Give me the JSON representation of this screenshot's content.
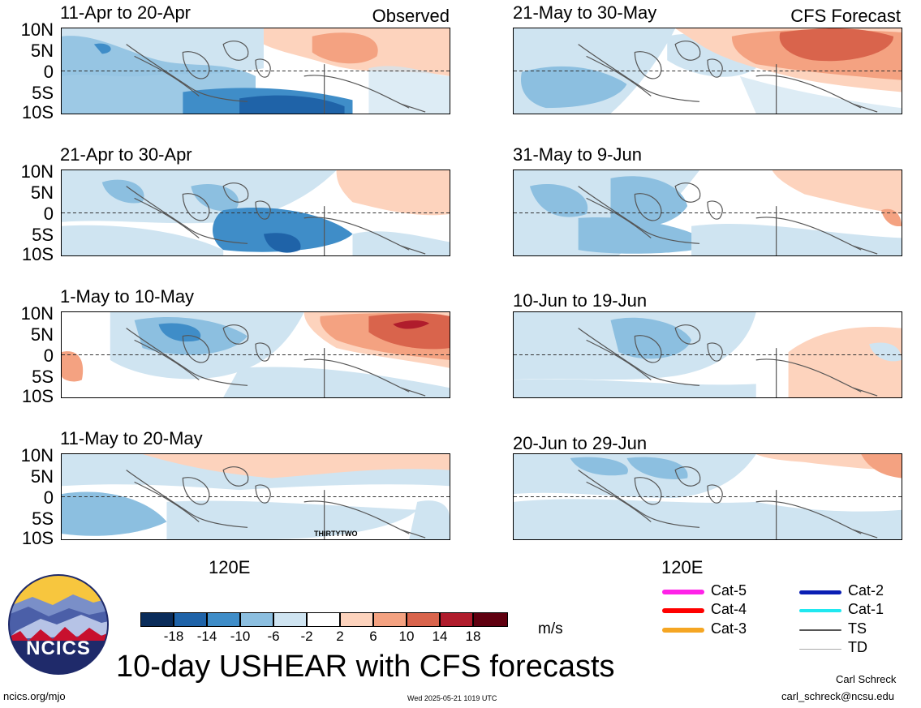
{
  "observed_label": "Observed",
  "forecast_label": "CFS Forecast",
  "panels_left": [
    {
      "period": "11-Apr to 20-Apr"
    },
    {
      "period": "21-Apr to 30-Apr"
    },
    {
      "period": "1-May to 10-May"
    },
    {
      "period": "11-May to 20-May",
      "annotation": "THIRTYTWO"
    }
  ],
  "panels_right": [
    {
      "period": "21-May to 30-May"
    },
    {
      "period": "31-May to 9-Jun"
    },
    {
      "period": "10-Jun to 19-Jun"
    },
    {
      "period": "20-Jun to 29-Jun"
    }
  ],
  "lat_labels": [
    "10N",
    "5N",
    "0",
    "5S",
    "10S"
  ],
  "lon_label": "120E",
  "colorbar": {
    "ticks": [
      "-18",
      "-14",
      "-10",
      "-6",
      "-2",
      "2",
      "6",
      "10",
      "14",
      "18"
    ],
    "colors": [
      "#0a2c5a",
      "#1f63a8",
      "#3f8dc8",
      "#8cbfe0",
      "#cfe4f1",
      "#ffffff",
      "#fdd3bd",
      "#f4a281",
      "#d9644c",
      "#b01c2c",
      "#600010"
    ],
    "units": "m/s"
  },
  "track_legend": [
    {
      "label": "Cat-5",
      "color": "#ff22e8",
      "width": 6
    },
    {
      "label": "Cat-4",
      "color": "#ff0000",
      "width": 6
    },
    {
      "label": "Cat-3",
      "color": "#f5a623",
      "width": 6
    },
    {
      "label": "Cat-2",
      "color": "#0a1eb4",
      "width": 5
    },
    {
      "label": "Cat-1",
      "color": "#20e8f0",
      "width": 4
    },
    {
      "label": "TS",
      "color": "#555555",
      "width": 2
    },
    {
      "label": "TD",
      "color": "#aaaaaa",
      "width": 1
    }
  ],
  "logo_text": "NCICS",
  "main_title": "10-day USHEAR with CFS forecasts",
  "footer_left": "ncics.org/mjo",
  "footer_center": "Wed 2025-05-21 1019 UTC",
  "author_name": "Carl Schreck",
  "author_email": "carl_schreck@ncsu.edu"
}
